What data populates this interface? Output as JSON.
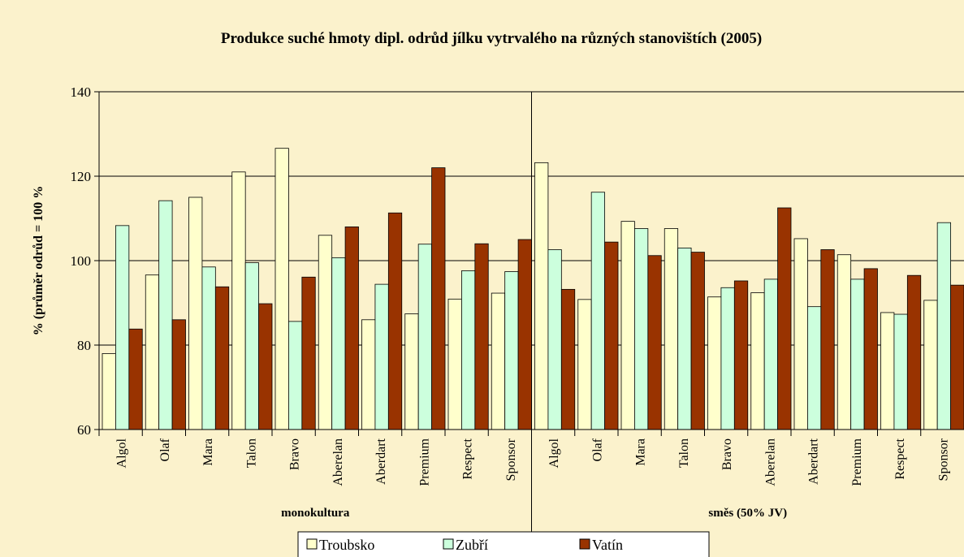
{
  "chart_data": {
    "type": "bar",
    "title": "Produkce suché hmoty dipl. odrůd jílku vytrvalého na různých stanovištích (2005)",
    "y_label": "% (průměr odrůd = 100 %",
    "groups": [
      {
        "name": "monokultura",
        "categories": [
          "Algol",
          "Olaf",
          "Mara",
          "Talon",
          "Bravo",
          "Aberelan",
          "Aberdart",
          "Premium",
          "Respect",
          "Sponsor"
        ]
      },
      {
        "name": "směs (50% JV)",
        "categories": [
          "Algol",
          "Olaf",
          "Mara",
          "Talon",
          "Bravo",
          "Aberelan",
          "Aberdart",
          "Premium",
          "Respect",
          "Sponsor"
        ]
      }
    ],
    "series": [
      {
        "name": "Troubsko",
        "color": "#ffffcc",
        "values": [
          78,
          96.6,
          115,
          121,
          126.6,
          106,
          86,
          87.4,
          90.9,
          92.3,
          123.2,
          90.8,
          109.3,
          107.6,
          91.4,
          92.4,
          105.2,
          101.4,
          87.7,
          90.6
        ]
      },
      {
        "name": "Zubří",
        "color": "#ccffdd",
        "values": [
          108.3,
          114.2,
          98.5,
          99.5,
          85.6,
          100.7,
          94.4,
          103.9,
          97.6,
          97.4,
          102.6,
          116.2,
          107.6,
          103,
          93.6,
          95.6,
          89.1,
          95.6,
          87.3,
          109
        ]
      },
      {
        "name": "Vatín",
        "color": "#993300",
        "values": [
          83.8,
          86,
          93.8,
          89.8,
          96.1,
          108,
          111.3,
          122,
          104,
          105,
          93.2,
          104.4,
          101.2,
          102,
          95.2,
          112.5,
          102.6,
          98.1,
          96.5,
          94.2
        ]
      }
    ],
    "ylim": [
      60,
      140
    ],
    "yticks": [
      60,
      80,
      100,
      120,
      140
    ],
    "grid": true,
    "legend": "bottom"
  }
}
